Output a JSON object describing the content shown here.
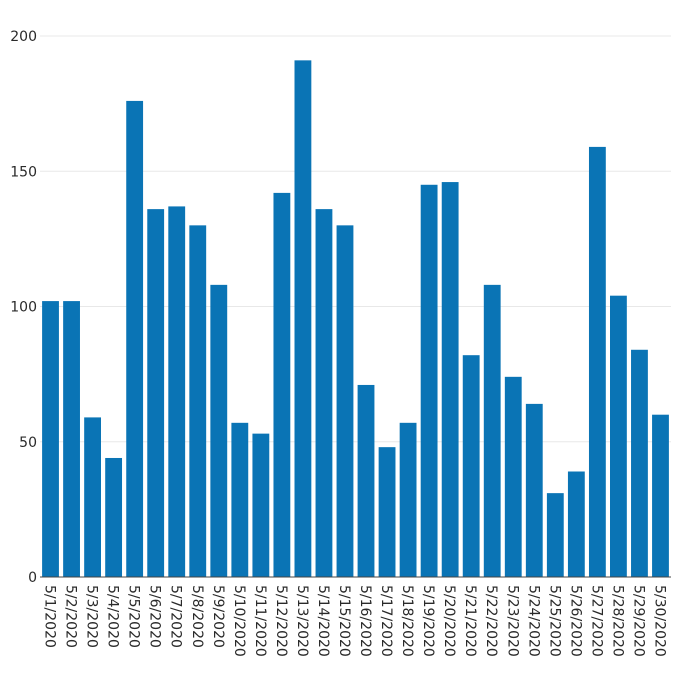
{
  "chart_data": {
    "type": "bar",
    "title": "",
    "xlabel": "",
    "ylabel": "",
    "ylim": [
      0,
      200
    ],
    "yticks": [
      0,
      50,
      100,
      150,
      200
    ],
    "grid": true,
    "bar_color": "#0a74b5",
    "categories": [
      "5/1/2020",
      "5/2/2020",
      "5/3/2020",
      "5/4/2020",
      "5/5/2020",
      "5/6/2020",
      "5/7/2020",
      "5/8/2020",
      "5/9/2020",
      "5/10/2020",
      "5/11/2020",
      "5/12/2020",
      "5/13/2020",
      "5/14/2020",
      "5/15/2020",
      "5/16/2020",
      "5/17/2020",
      "5/18/2020",
      "5/19/2020",
      "5/20/2020",
      "5/21/2020",
      "5/22/2020",
      "5/23/2020",
      "5/24/2020",
      "5/25/2020",
      "5/26/2020",
      "5/27/2020",
      "5/28/2020",
      "5/29/2020",
      "5/30/2020"
    ],
    "values": [
      102,
      102,
      59,
      44,
      176,
      136,
      137,
      130,
      108,
      57,
      53,
      142,
      191,
      136,
      130,
      71,
      48,
      57,
      145,
      146,
      82,
      108,
      74,
      64,
      31,
      39,
      159,
      104,
      84,
      60
    ]
  }
}
